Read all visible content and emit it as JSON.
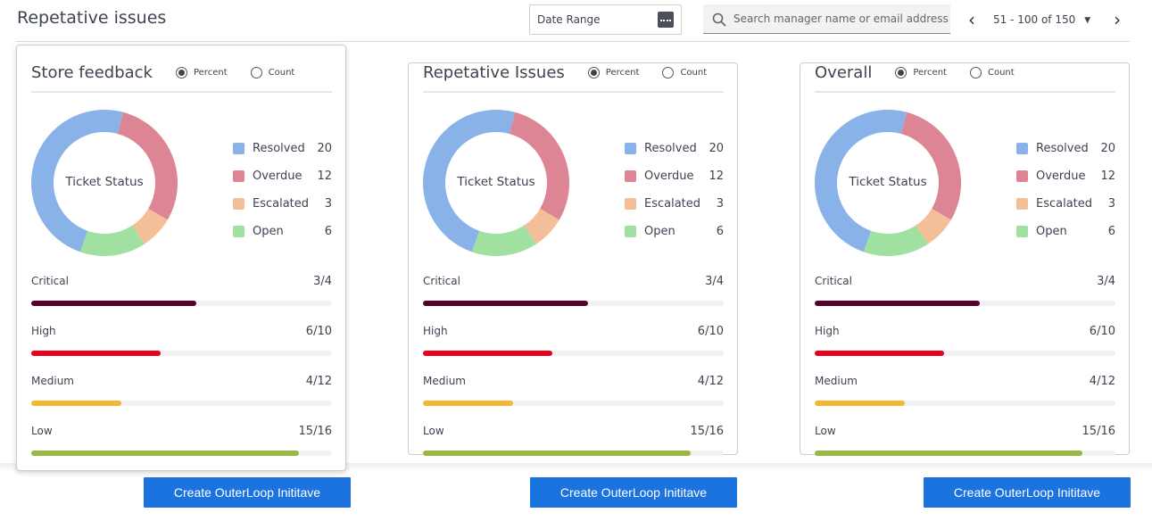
{
  "header": {
    "title": "Repetative issues",
    "date_range": "Date Range",
    "search_placeholder": "Search manager name or email address",
    "pagination": "51 - 100 of 150"
  },
  "colors": {
    "resolved": "#88b2e8",
    "overdue": "#de8595",
    "escalated": "#f4bf98",
    "open": "#a0e0a0",
    "critical": "#58002a",
    "high": "#e8001c",
    "medium": "#f5b731",
    "low": "#98b843",
    "button": "#1b73e0"
  },
  "cards": [
    {
      "title": "Store  feedback",
      "radio_percent": "Percent",
      "radio_count": "Count",
      "selected": "Percent",
      "donut_label": "Ticket Status",
      "legend": [
        {
          "label": "Resolved",
          "value": "20"
        },
        {
          "label": "Overdue",
          "value": "12"
        },
        {
          "label": "Escalated",
          "value": "3"
        },
        {
          "label": "Open",
          "value": "6"
        }
      ],
      "priorities": [
        {
          "label": "Critical",
          "value": "3/4",
          "fill": 0.55
        },
        {
          "label": "High",
          "value": "6/10",
          "fill": 0.43
        },
        {
          "label": "Medium",
          "value": "4/12",
          "fill": 0.3
        },
        {
          "label": "Low",
          "value": "15/16",
          "fill": 0.89
        }
      ],
      "button": "Create OuterLoop Inititave"
    },
    {
      "title": "Repetative Issues",
      "radio_percent": "Percent",
      "radio_count": "Count",
      "selected": "Percent",
      "donut_label": "Ticket Status",
      "legend": [
        {
          "label": "Resolved",
          "value": "20"
        },
        {
          "label": "Overdue",
          "value": "12"
        },
        {
          "label": "Escalated",
          "value": "3"
        },
        {
          "label": "Open",
          "value": "6"
        }
      ],
      "priorities": [
        {
          "label": "Critical",
          "value": "3/4",
          "fill": 0.55
        },
        {
          "label": "High",
          "value": "6/10",
          "fill": 0.43
        },
        {
          "label": "Medium",
          "value": "4/12",
          "fill": 0.3
        },
        {
          "label": "Low",
          "value": "15/16",
          "fill": 0.89
        }
      ],
      "button": "Create OuterLoop Inititave"
    },
    {
      "title": "Overall",
      "radio_percent": "Percent",
      "radio_count": "Count",
      "selected": "Percent",
      "donut_label": "Ticket Status",
      "legend": [
        {
          "label": "Resolved",
          "value": "20"
        },
        {
          "label": "Overdue",
          "value": "12"
        },
        {
          "label": "Escalated",
          "value": "3"
        },
        {
          "label": "Open",
          "value": "6"
        }
      ],
      "priorities": [
        {
          "label": "Critical",
          "value": "3/4",
          "fill": 0.55
        },
        {
          "label": "High",
          "value": "6/10",
          "fill": 0.43
        },
        {
          "label": "Medium",
          "value": "4/12",
          "fill": 0.3
        },
        {
          "label": "Low",
          "value": "15/16",
          "fill": 0.89
        }
      ],
      "button": "Create OuterLoop Inititave"
    }
  ]
}
